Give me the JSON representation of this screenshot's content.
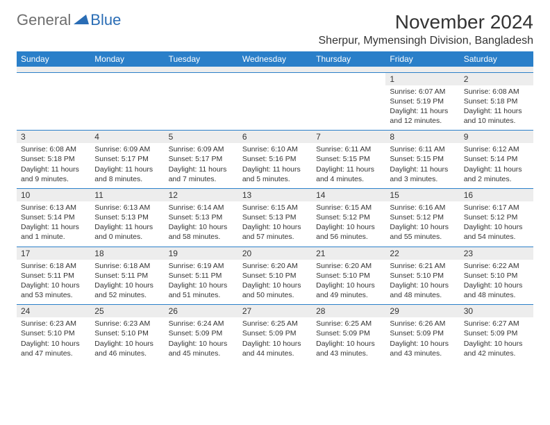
{
  "logo": {
    "part1": "General",
    "part2": "Blue"
  },
  "title": "November 2024",
  "location": "Sherpur, Mymensingh Division, Bangladesh",
  "colors": {
    "header_bg": "#2a7fc9",
    "header_text": "#ffffff",
    "daynum_bg": "#ededed",
    "border": "#2a7fc9",
    "text": "#333333",
    "logo_gray": "#6e6e6e",
    "logo_blue": "#2a6db5"
  },
  "day_names": [
    "Sunday",
    "Monday",
    "Tuesday",
    "Wednesday",
    "Thursday",
    "Friday",
    "Saturday"
  ],
  "weeks": [
    [
      null,
      null,
      null,
      null,
      null,
      {
        "n": "1",
        "sr": "Sunrise: 6:07 AM",
        "ss": "Sunset: 5:19 PM",
        "dl": "Daylight: 11 hours and 12 minutes."
      },
      {
        "n": "2",
        "sr": "Sunrise: 6:08 AM",
        "ss": "Sunset: 5:18 PM",
        "dl": "Daylight: 11 hours and 10 minutes."
      }
    ],
    [
      {
        "n": "3",
        "sr": "Sunrise: 6:08 AM",
        "ss": "Sunset: 5:18 PM",
        "dl": "Daylight: 11 hours and 9 minutes."
      },
      {
        "n": "4",
        "sr": "Sunrise: 6:09 AM",
        "ss": "Sunset: 5:17 PM",
        "dl": "Daylight: 11 hours and 8 minutes."
      },
      {
        "n": "5",
        "sr": "Sunrise: 6:09 AM",
        "ss": "Sunset: 5:17 PM",
        "dl": "Daylight: 11 hours and 7 minutes."
      },
      {
        "n": "6",
        "sr": "Sunrise: 6:10 AM",
        "ss": "Sunset: 5:16 PM",
        "dl": "Daylight: 11 hours and 5 minutes."
      },
      {
        "n": "7",
        "sr": "Sunrise: 6:11 AM",
        "ss": "Sunset: 5:15 PM",
        "dl": "Daylight: 11 hours and 4 minutes."
      },
      {
        "n": "8",
        "sr": "Sunrise: 6:11 AM",
        "ss": "Sunset: 5:15 PM",
        "dl": "Daylight: 11 hours and 3 minutes."
      },
      {
        "n": "9",
        "sr": "Sunrise: 6:12 AM",
        "ss": "Sunset: 5:14 PM",
        "dl": "Daylight: 11 hours and 2 minutes."
      }
    ],
    [
      {
        "n": "10",
        "sr": "Sunrise: 6:13 AM",
        "ss": "Sunset: 5:14 PM",
        "dl": "Daylight: 11 hours and 1 minute."
      },
      {
        "n": "11",
        "sr": "Sunrise: 6:13 AM",
        "ss": "Sunset: 5:13 PM",
        "dl": "Daylight: 11 hours and 0 minutes."
      },
      {
        "n": "12",
        "sr": "Sunrise: 6:14 AM",
        "ss": "Sunset: 5:13 PM",
        "dl": "Daylight: 10 hours and 58 minutes."
      },
      {
        "n": "13",
        "sr": "Sunrise: 6:15 AM",
        "ss": "Sunset: 5:13 PM",
        "dl": "Daylight: 10 hours and 57 minutes."
      },
      {
        "n": "14",
        "sr": "Sunrise: 6:15 AM",
        "ss": "Sunset: 5:12 PM",
        "dl": "Daylight: 10 hours and 56 minutes."
      },
      {
        "n": "15",
        "sr": "Sunrise: 6:16 AM",
        "ss": "Sunset: 5:12 PM",
        "dl": "Daylight: 10 hours and 55 minutes."
      },
      {
        "n": "16",
        "sr": "Sunrise: 6:17 AM",
        "ss": "Sunset: 5:12 PM",
        "dl": "Daylight: 10 hours and 54 minutes."
      }
    ],
    [
      {
        "n": "17",
        "sr": "Sunrise: 6:18 AM",
        "ss": "Sunset: 5:11 PM",
        "dl": "Daylight: 10 hours and 53 minutes."
      },
      {
        "n": "18",
        "sr": "Sunrise: 6:18 AM",
        "ss": "Sunset: 5:11 PM",
        "dl": "Daylight: 10 hours and 52 minutes."
      },
      {
        "n": "19",
        "sr": "Sunrise: 6:19 AM",
        "ss": "Sunset: 5:11 PM",
        "dl": "Daylight: 10 hours and 51 minutes."
      },
      {
        "n": "20",
        "sr": "Sunrise: 6:20 AM",
        "ss": "Sunset: 5:10 PM",
        "dl": "Daylight: 10 hours and 50 minutes."
      },
      {
        "n": "21",
        "sr": "Sunrise: 6:20 AM",
        "ss": "Sunset: 5:10 PM",
        "dl": "Daylight: 10 hours and 49 minutes."
      },
      {
        "n": "22",
        "sr": "Sunrise: 6:21 AM",
        "ss": "Sunset: 5:10 PM",
        "dl": "Daylight: 10 hours and 48 minutes."
      },
      {
        "n": "23",
        "sr": "Sunrise: 6:22 AM",
        "ss": "Sunset: 5:10 PM",
        "dl": "Daylight: 10 hours and 48 minutes."
      }
    ],
    [
      {
        "n": "24",
        "sr": "Sunrise: 6:23 AM",
        "ss": "Sunset: 5:10 PM",
        "dl": "Daylight: 10 hours and 47 minutes."
      },
      {
        "n": "25",
        "sr": "Sunrise: 6:23 AM",
        "ss": "Sunset: 5:10 PM",
        "dl": "Daylight: 10 hours and 46 minutes."
      },
      {
        "n": "26",
        "sr": "Sunrise: 6:24 AM",
        "ss": "Sunset: 5:09 PM",
        "dl": "Daylight: 10 hours and 45 minutes."
      },
      {
        "n": "27",
        "sr": "Sunrise: 6:25 AM",
        "ss": "Sunset: 5:09 PM",
        "dl": "Daylight: 10 hours and 44 minutes."
      },
      {
        "n": "28",
        "sr": "Sunrise: 6:25 AM",
        "ss": "Sunset: 5:09 PM",
        "dl": "Daylight: 10 hours and 43 minutes."
      },
      {
        "n": "29",
        "sr": "Sunrise: 6:26 AM",
        "ss": "Sunset: 5:09 PM",
        "dl": "Daylight: 10 hours and 43 minutes."
      },
      {
        "n": "30",
        "sr": "Sunrise: 6:27 AM",
        "ss": "Sunset: 5:09 PM",
        "dl": "Daylight: 10 hours and 42 minutes."
      }
    ]
  ]
}
